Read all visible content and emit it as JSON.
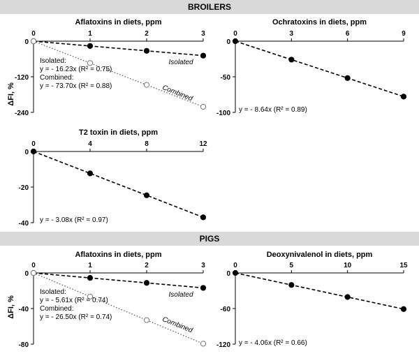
{
  "sections": {
    "broilers": "BROILERS",
    "pigs": "PIGS"
  },
  "shared_ylabel": "ΔFI, %",
  "colors": {
    "band": "#d9d9d9",
    "isolated_marker": "#000000",
    "combined_marker": "#ffffff",
    "axis": "#000000"
  },
  "chart_data": [
    {
      "id": "broilers-aflatoxins",
      "type": "line",
      "title": "Aflatoxins in diets, ppm",
      "xlabel": "Aflatoxins in diets, ppm",
      "ylabel": "ΔFI, %",
      "xlim": [
        0,
        3
      ],
      "ylim": [
        -240,
        0
      ],
      "xticks": [
        0,
        1,
        2,
        3
      ],
      "yticks": [
        0,
        -120,
        -240
      ],
      "series": [
        {
          "name": "Isolated",
          "x": [
            0,
            1,
            2,
            3
          ],
          "values": [
            0,
            -16.2,
            -32.5,
            -48.7
          ],
          "marker": "filled",
          "line": "dashed"
        },
        {
          "name": "Combined",
          "x": [
            0,
            1,
            2,
            3
          ],
          "values": [
            0,
            -73.7,
            -147.4,
            -221.1
          ],
          "marker": "open",
          "line": "dotted"
        }
      ],
      "equations": [
        "Isolated:",
        "y = - 16.23x (R² = 0.75)",
        "Combined:",
        "y = - 73.70x (R² = 0.88)"
      ]
    },
    {
      "id": "broilers-ochratoxins",
      "type": "line",
      "title": "Ochratoxins in diets, ppm",
      "xlabel": "Ochratoxins in diets, ppm",
      "xlim": [
        0,
        9
      ],
      "ylim": [
        -100,
        0
      ],
      "xticks": [
        0,
        3,
        6,
        9
      ],
      "yticks": [
        0,
        -50,
        -100
      ],
      "series": [
        {
          "x": [
            0,
            3,
            6,
            9
          ],
          "values": [
            0,
            -25.9,
            -51.8,
            -77.8
          ],
          "marker": "filled",
          "line": "dashed"
        }
      ],
      "equations": [
        "y = - 8.64x (R² = 0.89)"
      ]
    },
    {
      "id": "broilers-t2",
      "type": "line",
      "title": "T2 toxin in diets, ppm",
      "xlabel": "T2 toxin in diets, ppm",
      "xlim": [
        0,
        12
      ],
      "ylim": [
        -40,
        0
      ],
      "xticks": [
        0,
        4,
        8,
        12
      ],
      "yticks": [
        0,
        -20,
        -40
      ],
      "series": [
        {
          "x": [
            0,
            4,
            8,
            12
          ],
          "values": [
            0,
            -12.3,
            -24.6,
            -37.0
          ],
          "marker": "filled",
          "line": "dashed"
        }
      ],
      "equations": [
        "y = - 3.08x (R² = 0.97)"
      ]
    },
    {
      "id": "pigs-aflatoxins",
      "type": "line",
      "title": "Aflatoxins in diets, ppm",
      "xlabel": "Aflatoxins in diets, ppm",
      "ylabel": "ΔFI, %",
      "xlim": [
        0,
        3
      ],
      "ylim": [
        -80,
        0
      ],
      "xticks": [
        0,
        1,
        2,
        3
      ],
      "yticks": [
        0,
        -40,
        -80
      ],
      "series": [
        {
          "name": "Isolated",
          "x": [
            0,
            1,
            2,
            3
          ],
          "values": [
            0,
            -5.6,
            -11.2,
            -16.8
          ],
          "marker": "filled",
          "line": "dashed"
        },
        {
          "name": "Combined",
          "x": [
            0,
            1,
            2,
            3
          ],
          "values": [
            0,
            -26.5,
            -53.0,
            -79.5
          ],
          "marker": "open",
          "line": "dotted"
        }
      ],
      "equations": [
        "Isolated:",
        "y = - 5.61x (R² = 0.74)",
        "Combined:",
        "y = - 26.50x (R² = 0.74)"
      ]
    },
    {
      "id": "pigs-deoxynivalenol",
      "type": "line",
      "title": "Deoxynivalenol in diets, ppm",
      "xlabel": "Deoxynivalenol in diets, ppm",
      "xlim": [
        0,
        15
      ],
      "ylim": [
        -120,
        0
      ],
      "xticks": [
        0,
        5,
        10,
        15
      ],
      "yticks": [
        0,
        -60,
        -120
      ],
      "series": [
        {
          "x": [
            0,
            5,
            10,
            15
          ],
          "values": [
            0,
            -20.3,
            -40.6,
            -60.9
          ],
          "marker": "filled",
          "line": "dashed"
        }
      ],
      "equations": [
        "y = - 4.06x (R² = 0.66)"
      ]
    }
  ]
}
